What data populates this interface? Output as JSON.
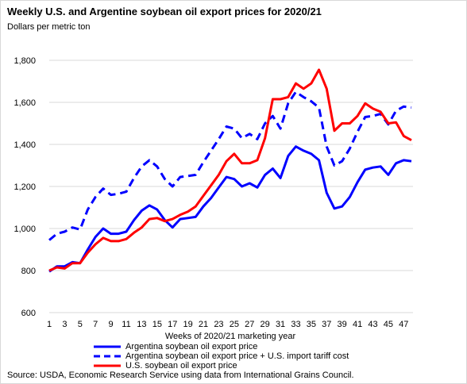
{
  "title": "Weekly U.S. and Argentine soybean oil export prices for 2020/21",
  "units": "Dollars per metric ton",
  "source": "Source: USDA, Economic Research Service using data from International Grains Council.",
  "chart_data": {
    "type": "line",
    "title": "Weekly U.S. and Argentine soybean oil export prices for 2020/21",
    "xlabel": "Weeks of 2020/21 marketing year",
    "ylabel": "Dollars per metric ton",
    "ylim": [
      600,
      1800
    ],
    "yticks": [
      600,
      800,
      1000,
      1200,
      1400,
      1600,
      1800
    ],
    "ytick_labels": [
      "600",
      "800",
      "1,000",
      "1,200",
      "1,400",
      "1,600",
      "1,800"
    ],
    "xlim": [
      1,
      48
    ],
    "xticks": [
      1,
      3,
      5,
      7,
      9,
      11,
      13,
      15,
      17,
      19,
      21,
      23,
      25,
      27,
      29,
      31,
      33,
      35,
      37,
      39,
      41,
      43,
      45,
      47
    ],
    "grid": "horizontal",
    "legend_position": "bottom",
    "x": [
      1,
      2,
      3,
      4,
      5,
      6,
      7,
      8,
      9,
      10,
      11,
      12,
      13,
      14,
      15,
      16,
      17,
      18,
      19,
      20,
      21,
      22,
      23,
      24,
      25,
      26,
      27,
      28,
      29,
      30,
      31,
      32,
      33,
      34,
      35,
      36,
      37,
      38,
      39,
      40,
      41,
      42,
      43,
      44,
      45,
      46,
      47,
      48
    ],
    "series": [
      {
        "name": "Argentina soybean oil export price",
        "color": "#0000ff",
        "style": "solid",
        "values": [
          795,
          820,
          820,
          840,
          835,
          900,
          960,
          1000,
          975,
          975,
          985,
          1040,
          1085,
          1110,
          1090,
          1040,
          1005,
          1045,
          1050,
          1055,
          1105,
          1145,
          1195,
          1245,
          1235,
          1200,
          1215,
          1195,
          1255,
          1285,
          1240,
          1345,
          1390,
          1370,
          1355,
          1325,
          1170,
          1095,
          1105,
          1150,
          1220,
          1280,
          1290,
          1295,
          1255,
          1310,
          1325,
          1320
        ]
      },
      {
        "name": "Argentina soybean oil export price + U.S. import tariff cost",
        "color": "#0000ff",
        "style": "dashed",
        "values": [
          945,
          975,
          985,
          1005,
          995,
          1090,
          1150,
          1190,
          1160,
          1165,
          1175,
          1240,
          1295,
          1325,
          1295,
          1235,
          1200,
          1245,
          1250,
          1255,
          1315,
          1370,
          1425,
          1485,
          1475,
          1430,
          1450,
          1425,
          1500,
          1535,
          1475,
          1595,
          1650,
          1625,
          1605,
          1575,
          1390,
          1300,
          1320,
          1380,
          1460,
          1530,
          1535,
          1545,
          1495,
          1560,
          1580,
          1575
        ]
      },
      {
        "name": "U.S. soybean oil export price",
        "color": "#ff0000",
        "style": "solid",
        "values": [
          800,
          815,
          810,
          835,
          835,
          885,
          925,
          955,
          940,
          940,
          950,
          980,
          1005,
          1045,
          1050,
          1035,
          1045,
          1065,
          1080,
          1105,
          1155,
          1205,
          1255,
          1320,
          1355,
          1310,
          1310,
          1325,
          1430,
          1615,
          1615,
          1625,
          1690,
          1665,
          1690,
          1755,
          1665,
          1465,
          1500,
          1500,
          1535,
          1595,
          1570,
          1555,
          1500,
          1505,
          1440,
          1420
        ]
      }
    ]
  }
}
